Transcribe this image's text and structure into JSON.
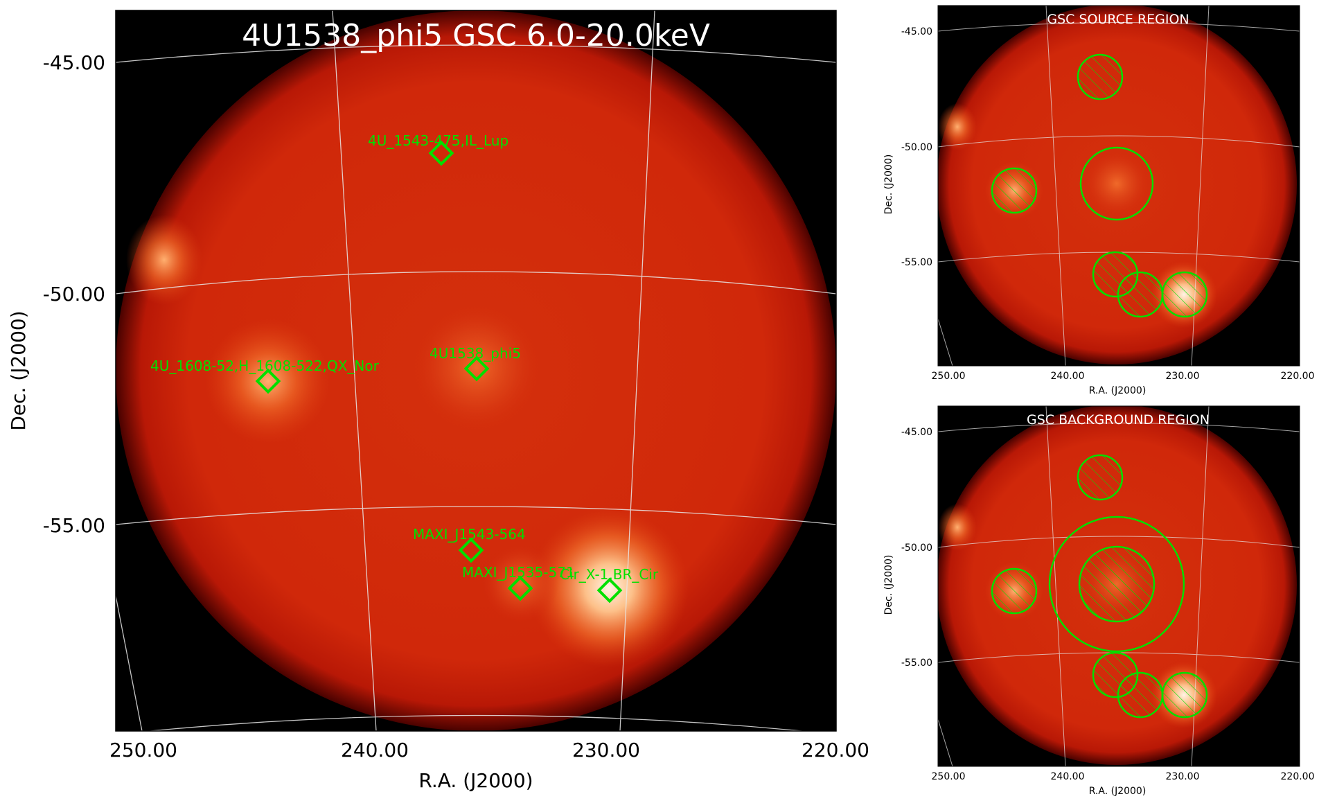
{
  "main_panel": {
    "title": "4U1538_phi5 GSC 6.0-20.0keV",
    "xlabel": "R.A. (J2000)",
    "ylabel": "Dec. (J2000)",
    "x_ticks": [
      "250.00",
      "240.00",
      "230.00",
      "220.00"
    ],
    "y_ticks": [
      "-45.00",
      "-50.00",
      "-55.00"
    ],
    "sources": [
      {
        "label": "4U_1543-475,IL_Lup"
      },
      {
        "label": "4U_1608-52,H_1608-522,QX_Nor"
      },
      {
        "label": "4U1538_phi5"
      },
      {
        "label": "MAXI_J1543-564"
      },
      {
        "label": "MAXI_J1535-571"
      },
      {
        "label": "Cir_X-1,BR_Cir"
      }
    ],
    "marker_color": "#00e000"
  },
  "source_panel": {
    "title": "GSC SOURCE REGION",
    "xlabel": "R.A. (J2000)",
    "ylabel": "Dec. (J2000)",
    "x_ticks": [
      "250.00",
      "240.00",
      "230.00",
      "220.00"
    ],
    "y_ticks": [
      "-45.00",
      "-50.00",
      "-55.00"
    ]
  },
  "background_panel": {
    "title": "GSC BACKGROUND REGION",
    "xlabel": "R.A. (J2000)",
    "ylabel": "Dec. (J2000)",
    "x_ticks": [
      "250.00",
      "240.00",
      "230.00",
      "220.00"
    ],
    "y_ticks": [
      "-45.00",
      "-50.00",
      "-55.00"
    ]
  },
  "colors": {
    "background": "#000000",
    "disk_edge": "#b80800",
    "disk_mid": "#d42a0a",
    "hot_spot": "#ffe6c8",
    "grid": "#e8e8e8",
    "region": "#00e000"
  }
}
